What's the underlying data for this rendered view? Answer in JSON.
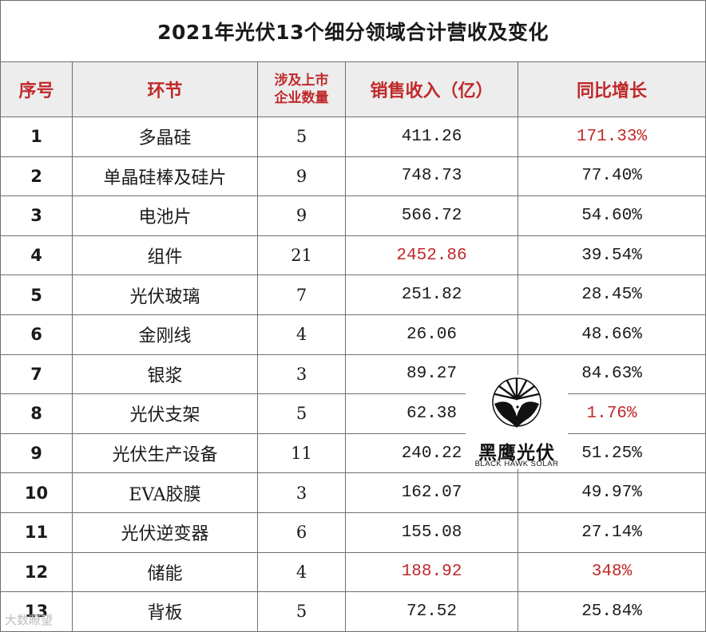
{
  "title": "2021年光伏13个细分领域合计营收及变化",
  "headers": {
    "no": "序号",
    "segment": "环节",
    "count_line1": "涉及上市",
    "count_line2": "企业数量",
    "revenue": "销售收入（亿）",
    "yoy": "同比增长"
  },
  "rows": [
    {
      "no": "1",
      "segment": "多晶硅",
      "count": "5",
      "revenue": "411.26",
      "yoy": "171.33%"
    },
    {
      "no": "2",
      "segment": "单晶硅棒及硅片",
      "count": "9",
      "revenue": "748.73",
      "yoy": "77.40%"
    },
    {
      "no": "3",
      "segment": "电池片",
      "count": "9",
      "revenue": "566.72",
      "yoy": "54.60%"
    },
    {
      "no": "4",
      "segment": "组件",
      "count": "21",
      "revenue": "2452.86",
      "yoy": "39.54%"
    },
    {
      "no": "5",
      "segment": "光伏玻璃",
      "count": "7",
      "revenue": "251.82",
      "yoy": "28.45%"
    },
    {
      "no": "6",
      "segment": "金刚线",
      "count": "4",
      "revenue": "26.06",
      "yoy": "48.66%"
    },
    {
      "no": "7",
      "segment": "银浆",
      "count": "3",
      "revenue": "89.27",
      "yoy": "84.63%"
    },
    {
      "no": "8",
      "segment": "光伏支架",
      "count": "5",
      "revenue": "62.38",
      "yoy": "1.76%"
    },
    {
      "no": "9",
      "segment": "光伏生产设备",
      "count": "11",
      "revenue": "240.22",
      "yoy": "51.25%"
    },
    {
      "no": "10",
      "segment": "EVA胶膜",
      "count": "3",
      "revenue": "162.07",
      "yoy": "49.97%"
    },
    {
      "no": "11",
      "segment": "光伏逆变器",
      "count": "6",
      "revenue": "155.08",
      "yoy": "27.14%"
    },
    {
      "no": "12",
      "segment": "储能",
      "count": "4",
      "revenue": "188.92",
      "yoy": "348%"
    },
    {
      "no": "13",
      "segment": "背板",
      "count": "5",
      "revenue": "72.52",
      "yoy": "25.84%"
    }
  ],
  "logo": {
    "name_cn": "黑鹰光伏",
    "name_en": "BLACK HAWK SOLAR"
  },
  "watermark": "大数瞭望",
  "colors": {
    "highlight": "#c0282a",
    "header_bg": "#ededed",
    "border": "#6f6f6f"
  }
}
